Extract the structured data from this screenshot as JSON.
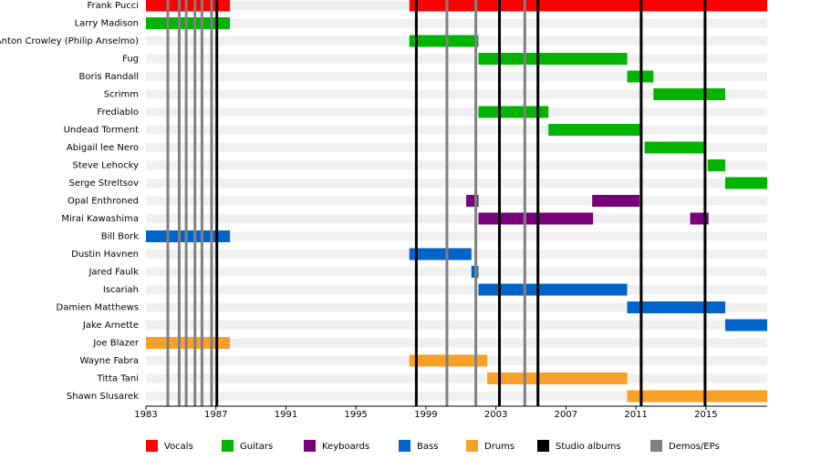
{
  "chart_data": {
    "type": "timeline",
    "categories": [
      "Frank Pucci",
      "Larry Madison",
      "Anton Crowley (Philip Anselmo)",
      "Fug",
      "Boris Randall",
      "Scrimm",
      "Frediablo",
      "Undead Torment",
      "Abigail lee Nero",
      "Steve Lehocky",
      "Serge Streltsov",
      "Opal Enthroned",
      "Mirai Kawashima",
      "Bill Bork",
      "Dustin Havnen",
      "Jared Faulk",
      "Iscariah",
      "Damien Matthews",
      "Jake Arnette",
      "Joe Blazer",
      "Wayne Fabra",
      "Titta Tani",
      "Shawn Slusarek"
    ],
    "series": [
      {
        "name": "Vocals",
        "color": "#ff0000",
        "values": [
          [
            [
              1983,
              1987.8
            ],
            [
              1998.05,
              2018.5
            ]
          ],
          [],
          [],
          [],
          [],
          [],
          [],
          [],
          [],
          [],
          [],
          [],
          [],
          [],
          [],
          [],
          [],
          [],
          [],
          [],
          [],
          [],
          []
        ]
      },
      {
        "name": "Guitars",
        "color": "#00b400",
        "values": [
          [],
          [
            [
              1983,
              1987.8
            ]
          ],
          [
            [
              1998.05,
              2002
            ]
          ],
          [
            [
              2002,
              2010.5
            ]
          ],
          [
            [
              2010.5,
              2012
            ]
          ],
          [
            [
              2012,
              2016.1
            ]
          ],
          [
            [
              2002,
              2006
            ]
          ],
          [
            [
              2006,
              2011.3
            ]
          ],
          [
            [
              2011.5,
              2015
            ]
          ],
          [
            [
              2015.1,
              2016.1
            ]
          ],
          [
            [
              2016.1,
              2018.5
            ]
          ],
          [],
          [],
          [],
          [],
          [],
          [],
          [],
          [],
          [],
          [],
          [],
          []
        ]
      },
      {
        "name": "Keyboards",
        "color": "#780078",
        "values": [
          [],
          [],
          [],
          [],
          [],
          [],
          [],
          [],
          [],
          [],
          [],
          [
            [
              2001.3,
              2002
            ],
            [
              2008.5,
              2011.2
            ]
          ],
          [
            [
              2002,
              2008.55
            ],
            [
              2014.1,
              2015.15
            ]
          ],
          [],
          [],
          [],
          [],
          [],
          [],
          [],
          [],
          [],
          []
        ]
      },
      {
        "name": "Bass",
        "color": "#0064c8",
        "values": [
          [],
          [],
          [],
          [],
          [],
          [],
          [],
          [],
          [],
          [],
          [],
          [],
          [],
          [
            [
              1983,
              1987.8
            ]
          ],
          [
            [
              1998.05,
              2001.6
            ]
          ],
          [
            [
              2001.6,
              2002
            ]
          ],
          [
            [
              2002,
              2010.5
            ]
          ],
          [
            [
              2010.5,
              2016.1
            ]
          ],
          [
            [
              2016.1,
              2018.5
            ]
          ],
          [],
          [],
          [],
          []
        ]
      },
      {
        "name": "Drums",
        "color": "#f8a028",
        "values": [
          [],
          [],
          [],
          [],
          [],
          [],
          [],
          [],
          [],
          [],
          [],
          [],
          [],
          [],
          [],
          [],
          [],
          [],
          [],
          [
            [
              1983,
              1987.8
            ]
          ],
          [
            [
              1998.05,
              2002.5
            ]
          ],
          [
            [
              2002.5,
              2010.5
            ]
          ],
          [
            [
              2010.5,
              2018.5
            ]
          ]
        ]
      }
    ],
    "events": [
      {
        "name": "Studio albums",
        "color": "#000000",
        "x": [
          1987.05,
          1998.45,
          2003.2,
          2005.4,
          2011.3,
          2014.95
        ]
      },
      {
        "name": "Demos/EPs",
        "color": "#808080",
        "x": [
          1984.25,
          1984.9,
          1985.3,
          1985.8,
          1986.2,
          1986.75,
          2000.2,
          2001.85,
          2004.65
        ]
      }
    ],
    "xlim": [
      1983,
      2018.5
    ],
    "xticks": [
      1983,
      1987,
      1991,
      1995,
      1999,
      2003,
      2007,
      2011,
      2015
    ]
  }
}
